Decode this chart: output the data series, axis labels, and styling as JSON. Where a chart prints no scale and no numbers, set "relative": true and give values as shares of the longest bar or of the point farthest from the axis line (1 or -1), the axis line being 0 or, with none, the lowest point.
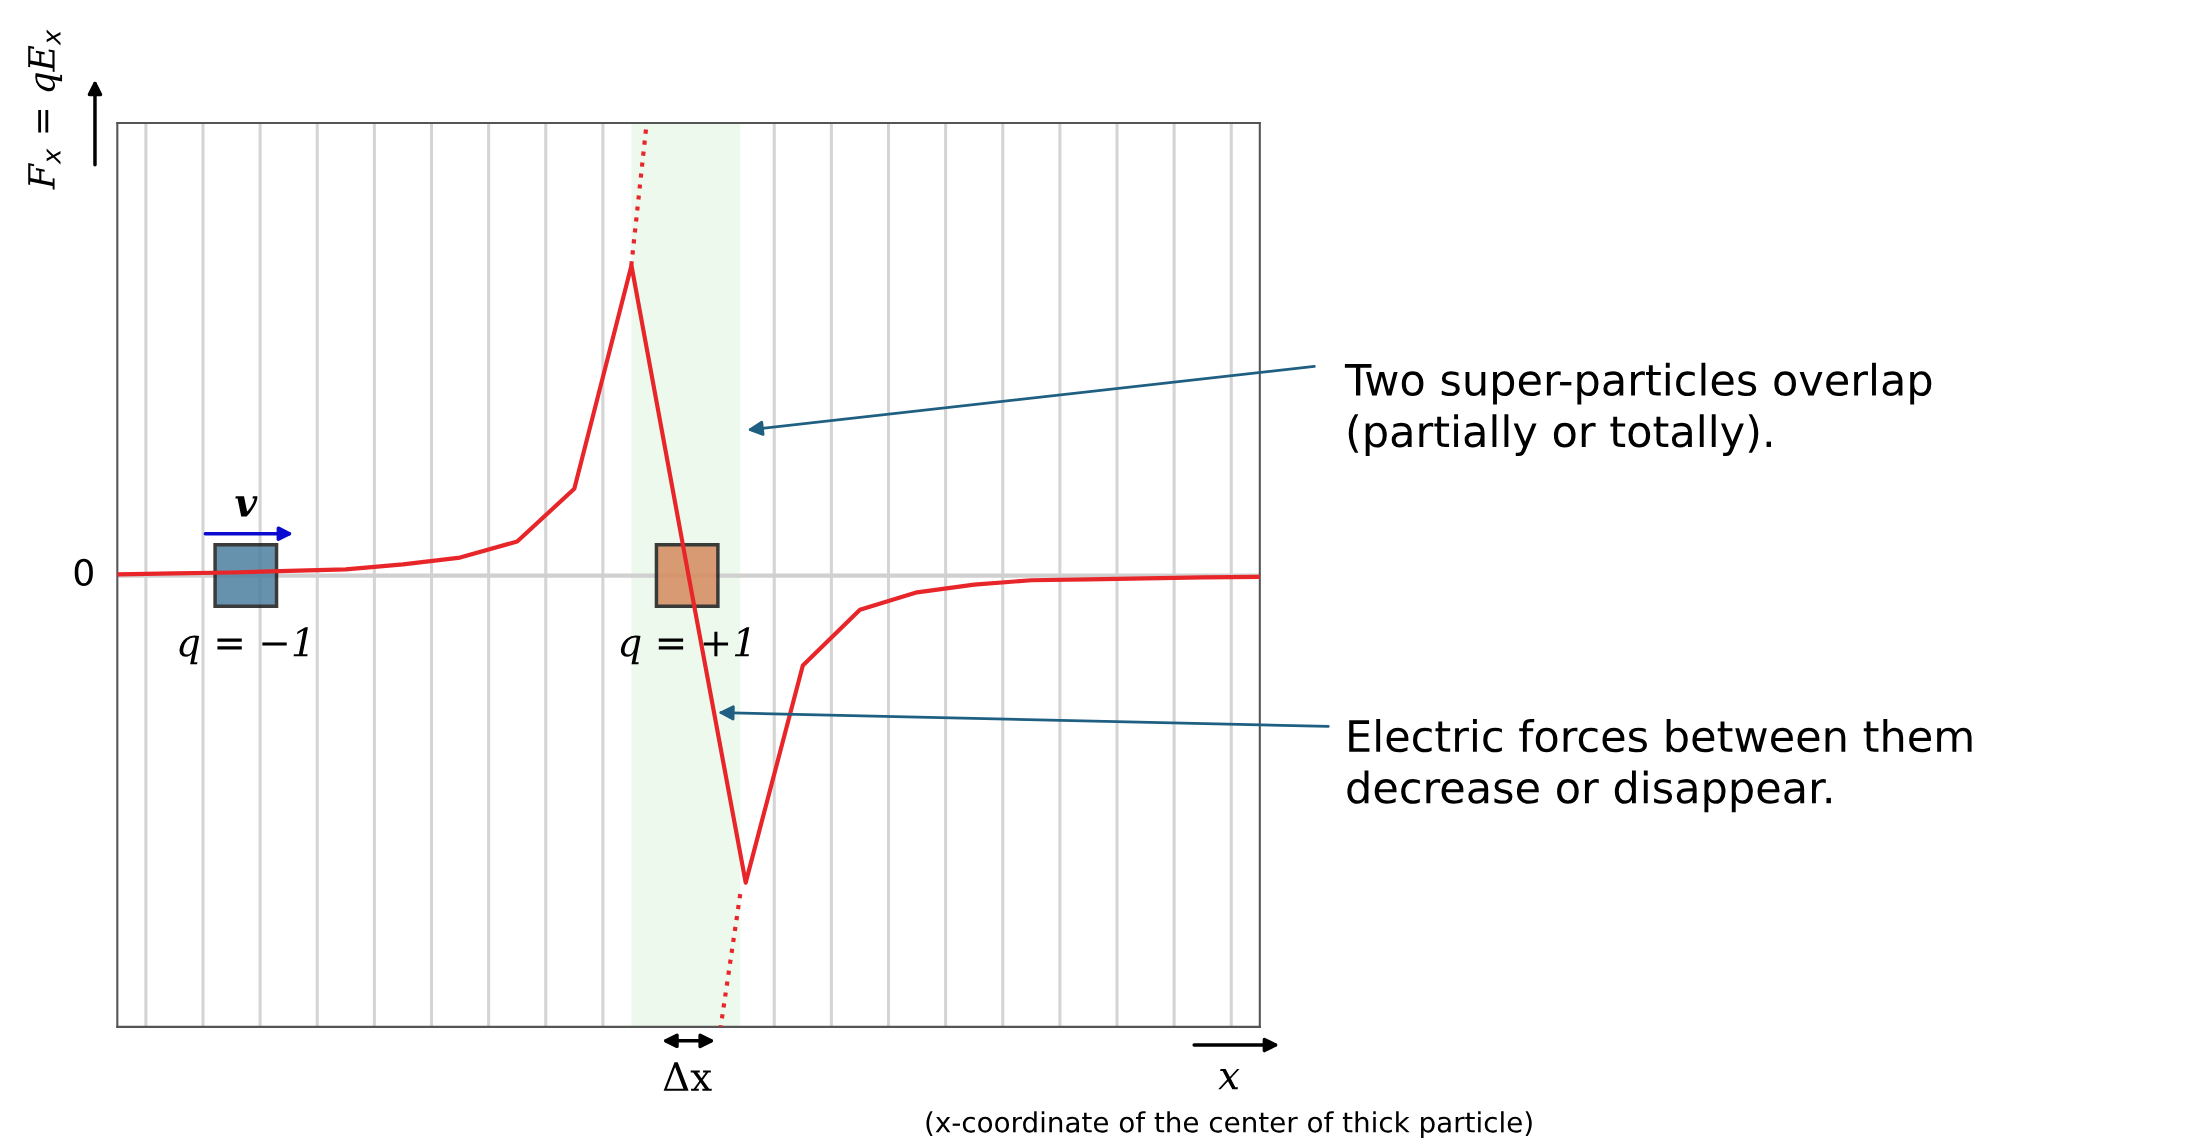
{
  "chart_data": {
    "type": "line",
    "relative": true,
    "ylabel": "F$_{x}$ = qE$_{x}$",
    "xlabel": "x",
    "categories": [
      null,
      null,
      null,
      null,
      null,
      null,
      null,
      null,
      null,
      null,
      null,
      null,
      null,
      null,
      null,
      null,
      null,
      null,
      null,
      null,
      null
    ],
    "grid": "x",
    "series": [
      {
        "color": "#e8262a",
        "line_style": "solid",
        "values": [
          0.004,
          0.007,
          0.01,
          0.015,
          0.02,
          0.036,
          0.058,
          0.11,
          0.28,
          1.0,
          0.0,
          -0.99,
          -0.29,
          -0.11,
          -0.054,
          -0.029,
          -0.015,
          -0.012,
          -0.009,
          -0.006,
          -0.004
        ]
      }
    ],
    "annotations": [
      "Two super-particles overlap\n(partially or totally).",
      "Electric forces between them\ndecrease or disappear.",
      "0",
      "q = −1",
      "q = +1",
      "v",
      "Δx",
      "(x-coordinate of the center of thick particle)"
    ]
  }
}
